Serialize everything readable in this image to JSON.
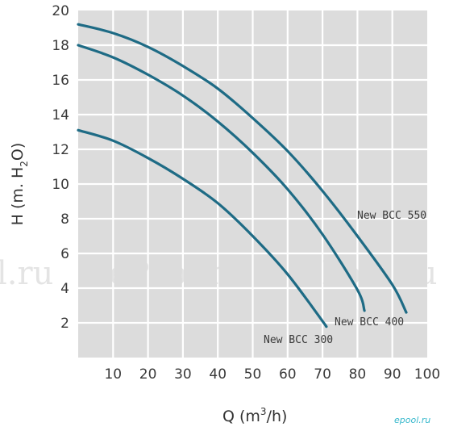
{
  "chart_data": {
    "type": "line",
    "xlabel": {
      "main": "Q (m",
      "sup": "3",
      "tail": "/h)"
    },
    "ylabel": {
      "main": "H (m. H",
      "sub": "2",
      "tail": "O)"
    },
    "xlim": [
      0,
      100
    ],
    "ylim": [
      0,
      20
    ],
    "x_ticks": [
      10,
      20,
      30,
      40,
      50,
      60,
      70,
      80,
      90,
      100
    ],
    "y_ticks": [
      2,
      4,
      6,
      8,
      10,
      12,
      14,
      16,
      18,
      20
    ],
    "grid": true,
    "line_color": "#1e6b85",
    "plot_background": "#dcdcdc",
    "series": [
      {
        "name": "New BCC 300",
        "x": [
          0,
          10,
          20,
          30,
          40,
          50,
          60,
          70,
          71
        ],
        "y": [
          13.1,
          12.5,
          11.5,
          10.3,
          8.9,
          7.0,
          4.8,
          2.1,
          1.8
        ]
      },
      {
        "name": "New BCC 400",
        "x": [
          0,
          10,
          20,
          30,
          40,
          50,
          60,
          70,
          80,
          82
        ],
        "y": [
          18.0,
          17.3,
          16.3,
          15.1,
          13.6,
          11.8,
          9.7,
          7.1,
          3.9,
          2.7
        ]
      },
      {
        "name": "New BCC 550",
        "x": [
          0,
          10,
          20,
          30,
          40,
          50,
          60,
          70,
          80,
          90,
          94
        ],
        "y": [
          19.2,
          18.7,
          17.9,
          16.8,
          15.5,
          13.8,
          11.9,
          9.6,
          7.0,
          4.2,
          2.6
        ]
      }
    ]
  },
  "watermarks": [
    "l.ru",
    "ePool.ru",
    "ePool.ru"
  ],
  "logo": "epool.ru"
}
